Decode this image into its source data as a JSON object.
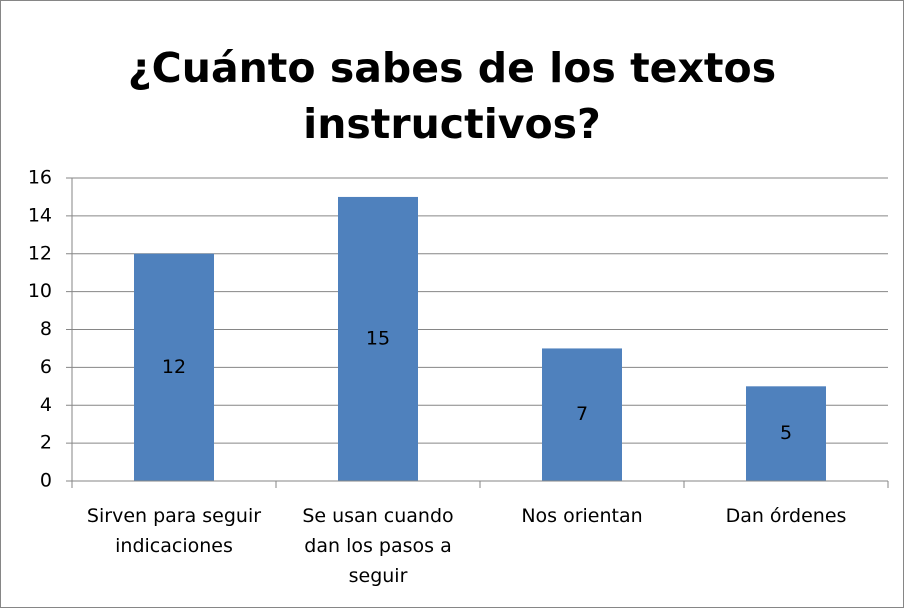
{
  "chart_data": {
    "type": "bar",
    "title": "¿Cuánto sabes de los textos instructivos?",
    "categories": [
      "Sirven para seguir indicaciones",
      "Se usan cuando dan los pasos a seguir",
      "Nos orientan",
      "Dan órdenes"
    ],
    "values": [
      12,
      15,
      7,
      5
    ],
    "color": "#4f81bd",
    "ylim": [
      0,
      16
    ],
    "yticks": [
      0,
      2,
      4,
      6,
      8,
      10,
      12,
      14,
      16
    ],
    "grid": true
  }
}
